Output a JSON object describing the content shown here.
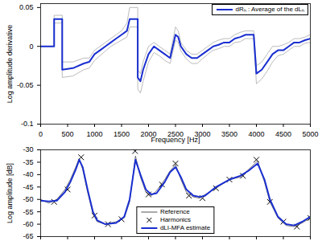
{
  "chart_data": [
    {
      "type": "line",
      "ylabel": "Log amplitude derivative",
      "xlabel": "Frequency [Hz]",
      "x": [
        0,
        250,
        250,
        400,
        400,
        600,
        800,
        900,
        1000,
        1100,
        1200,
        1300,
        1400,
        1500,
        1600,
        1650,
        1800,
        1800,
        1850,
        1900,
        2000,
        2100,
        2200,
        2300,
        2400,
        2500,
        2550,
        2600,
        2700,
        2800,
        2900,
        3000,
        3100,
        3200,
        3300,
        3400,
        3500,
        3600,
        3700,
        3800,
        3950,
        4000,
        4100,
        4200,
        4300,
        4400,
        4500,
        4600,
        4700,
        4800,
        4900,
        5000
      ],
      "series": [
        {
          "color": "#aaaaaa",
          "values": [
            0,
            0,
            0.04,
            0.04,
            -0.02,
            -0.02,
            -0.015,
            -0.015,
            -0.005,
            0,
            0.005,
            0.01,
            0.015,
            0.02,
            0.03,
            0.05,
            0.05,
            -0.03,
            -0.035,
            -0.02,
            0,
            0.005,
            0,
            -0.005,
            -0.01,
            0.025,
            0.02,
            0.005,
            -0.005,
            -0.01,
            -0.01,
            -0.005,
            0,
            0.005,
            0.008,
            0.01,
            0.01,
            0.015,
            0.018,
            0.02,
            0.02,
            -0.025,
            -0.02,
            -0.01,
            0,
            0,
            0.002,
            0.005,
            0.01,
            0.01,
            0.012,
            0.015
          ]
        },
        {
          "color": "#aaaaaa",
          "values": [
            0,
            0,
            0.03,
            0.03,
            -0.04,
            -0.038,
            -0.03,
            -0.028,
            -0.018,
            -0.012,
            -0.006,
            0,
            0.004,
            0.008,
            0.012,
            0.025,
            0.025,
            -0.055,
            -0.06,
            -0.045,
            -0.02,
            -0.008,
            -0.012,
            -0.018,
            -0.022,
            0.008,
            0.005,
            -0.006,
            -0.016,
            -0.022,
            -0.022,
            -0.016,
            -0.01,
            -0.005,
            -0.003,
            0,
            0,
            0.005,
            0.006,
            0.01,
            0.01,
            -0.048,
            -0.042,
            -0.032,
            -0.02,
            -0.012,
            -0.01,
            -0.005,
            0,
            0,
            0.004,
            0.005
          ]
        },
        {
          "name": "dRₕ : Average of the dLₕ",
          "color": "#1a2fd0",
          "values": [
            0,
            0,
            0.035,
            0.035,
            -0.03,
            -0.028,
            -0.022,
            -0.02,
            -0.01,
            -0.005,
            0,
            0.005,
            0.01,
            0.015,
            0.02,
            0.035,
            0.035,
            -0.04,
            -0.045,
            -0.03,
            -0.01,
            0,
            -0.005,
            -0.01,
            -0.015,
            0.015,
            0.012,
            0,
            -0.01,
            -0.015,
            -0.015,
            -0.01,
            -0.005,
            0,
            0.002,
            0.005,
            0.005,
            0.01,
            0.012,
            0.015,
            0.015,
            -0.035,
            -0.03,
            -0.02,
            -0.01,
            -0.005,
            -0.005,
            0,
            0.005,
            0.005,
            0.008,
            0.01
          ]
        }
      ],
      "xlim": [
        0,
        5000
      ],
      "xticks": [
        0,
        500,
        1000,
        1500,
        2000,
        2500,
        3000,
        3500,
        4000,
        4500,
        5000
      ],
      "ylim": [
        -0.1,
        0.055
      ],
      "yticks": [
        -0.1,
        -0.05,
        0,
        0.05
      ],
      "legend": "top-right"
    },
    {
      "type": "line",
      "ylabel": "Log amplitude [dB]",
      "x": [
        0,
        150,
        300,
        450,
        550,
        650,
        715,
        780,
        870,
        970,
        1050,
        1200,
        1400,
        1550,
        1650,
        1758,
        1850,
        1950,
        2050,
        2150,
        2300,
        2400,
        2503,
        2600,
        2700,
        2830,
        2950,
        3050,
        3250,
        3500,
        3700,
        3850,
        4023,
        4150,
        4250,
        4400,
        4550,
        4700,
        4850,
        5000
      ],
      "series": [
        {
          "name": "Reference",
          "color": "#555555",
          "line_style": "solid",
          "values": [
            -50,
            -51.5,
            -50,
            -46,
            -42,
            -37,
            -33.5,
            -38,
            -47,
            -56,
            -59,
            -60,
            -59,
            -57.5,
            -51,
            -32.5,
            -41,
            -47,
            -48.5,
            -46.5,
            -42,
            -38.5,
            -36,
            -42,
            -47,
            -49,
            -49.5,
            -48,
            -45.5,
            -42,
            -41,
            -38,
            -34.5,
            -43,
            -51,
            -57.5,
            -60.5,
            -61,
            -59.5,
            -57.5
          ]
        },
        {
          "name": "Harmonics",
          "type": "scatter",
          "marker": "x",
          "color": "#000000",
          "x": [
            250,
            500,
            750,
            1000,
            1250,
            1500,
            1750,
            2000,
            2250,
            2500,
            2750,
            3000,
            3250,
            3500,
            3750,
            4000,
            4250,
            4500,
            4750,
            5000
          ],
          "values": [
            -51,
            -46,
            -33,
            -56.5,
            -60,
            -58,
            -30.5,
            -48,
            -44,
            -35.5,
            -48.5,
            -49.5,
            -45.5,
            -42,
            -40.5,
            -34,
            -51,
            -59,
            -61,
            -57.5
          ]
        },
        {
          "name": "dLI-MFA estimate",
          "color": "#1a2fd0",
          "line_style": "solid",
          "values": [
            -50.5,
            -50.8,
            -50.5,
            -47,
            -43,
            -38,
            -34,
            -37,
            -46,
            -55,
            -58.5,
            -60,
            -59.5,
            -57,
            -50,
            -34,
            -40,
            -46,
            -48,
            -47.5,
            -43,
            -39,
            -37,
            -41,
            -46,
            -48.5,
            -49,
            -48.5,
            -45,
            -42,
            -40.5,
            -38.5,
            -35.5,
            -42,
            -50,
            -57,
            -60,
            -60.5,
            -59,
            -57
          ]
        }
      ],
      "xlim": [
        0,
        5000
      ],
      "xticks": [
        0,
        500,
        1000,
        1500,
        2000,
        2500,
        3000,
        3500,
        4000,
        4500,
        5000
      ],
      "ylim": [
        -65,
        -30
      ],
      "yticks": [
        -65,
        -60,
        -55,
        -50,
        -45,
        -40,
        -35,
        -30
      ],
      "tick_labels": "y",
      "legend": "bottom-center"
    }
  ]
}
